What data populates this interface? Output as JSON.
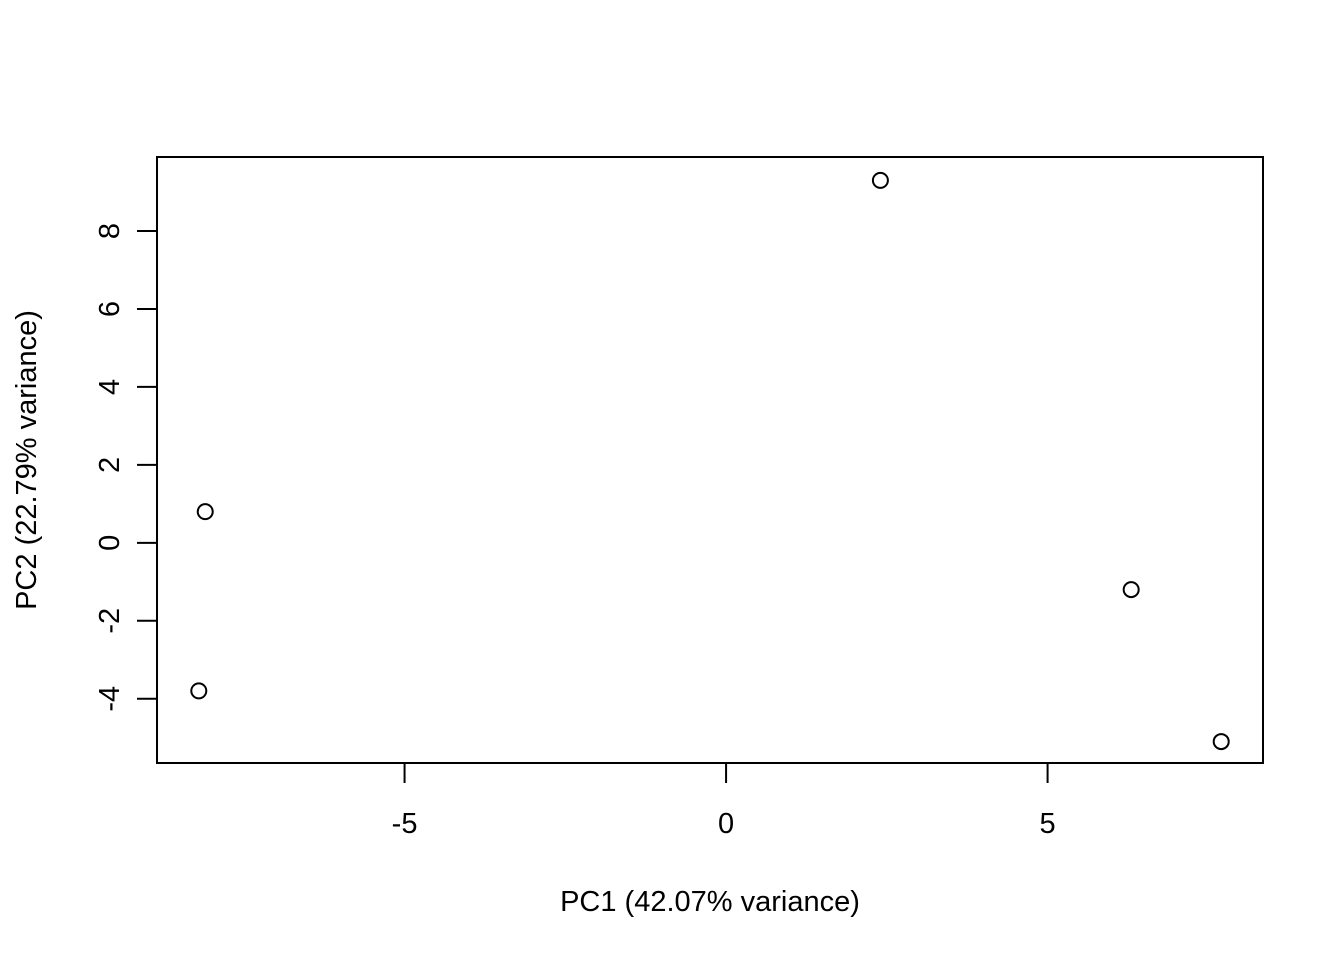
{
  "chart_data": {
    "type": "scatter",
    "title": "",
    "xlabel": "PC1 (42.07% variance)",
    "ylabel": "PC2 (22.79% variance)",
    "xlim": [
      -8.85,
      8.35
    ],
    "ylim": [
      -5.65,
      9.9
    ],
    "x_ticks": [
      -5,
      0,
      5
    ],
    "y_ticks": [
      -4,
      -2,
      0,
      2,
      4,
      6,
      8
    ],
    "grid": false,
    "legend": "none",
    "marker": "open-circle",
    "points": [
      {
        "x": 2.4,
        "y": 9.3
      },
      {
        "x": -8.1,
        "y": 0.8
      },
      {
        "x": -8.2,
        "y": -3.8
      },
      {
        "x": 6.3,
        "y": -1.2
      },
      {
        "x": 7.7,
        "y": -5.1
      }
    ]
  },
  "colors": {
    "axis": "#000000",
    "marker_stroke": "#000000",
    "background": "#ffffff"
  }
}
